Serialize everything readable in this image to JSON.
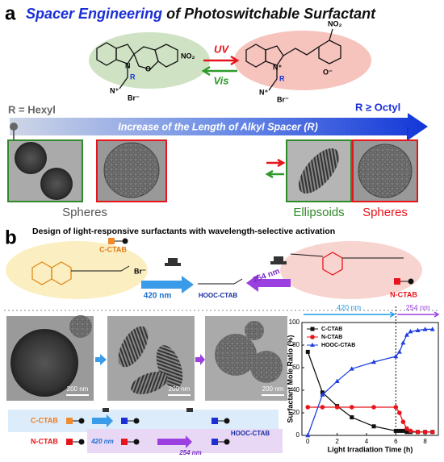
{
  "panel_a": {
    "label": "a",
    "title_highlight": "Spacer Engineering",
    "title_rest": "of Photoswitchable Surfactant",
    "closed_form": {
      "nitro": "NO₂",
      "nitrogen": "N",
      "oxygen": "O",
      "r_group": "R",
      "ammonium": "N⁺",
      "counterion": "Br⁻"
    },
    "open_form": {
      "nitro": "NO₂",
      "nitrogen": "N⁺",
      "oxygen": "O⁻",
      "r_group": "R",
      "ammonium": "N⁺",
      "counterion": "Br⁻"
    },
    "uv": "UV",
    "vis": "Vis",
    "short_spacer": "R = Hexyl",
    "long_spacer": "R ≥ Octyl",
    "arrow_text": "Increase of the Length of Alkyl Spacer (R)",
    "short_morphology": "Spheres",
    "long_morphology_1": "Ellipsoids",
    "long_morphology_2": "Spheres"
  },
  "panel_b": {
    "label": "b",
    "title": "Design of light-responsive surfactants with wavelength-selective activation",
    "c_ctab": "C-CTAB",
    "n_ctab": "N-CTAB",
    "hooc_ctab": "HOOC-CTAB",
    "wavelength_1": "420 nm",
    "wavelength_2": "254 nm",
    "counterion": "Br⁻",
    "scale_bars": [
      "200 nm",
      "200 nm",
      "200 nm"
    ],
    "scheme": {
      "c_ctab": "C-CTAB",
      "n_ctab": "N-CTAB",
      "hooc_ctab": "HOOC-CTAB",
      "wavelength_1": "420 nm",
      "wavelength_2": "254 nm"
    }
  },
  "chart_data": {
    "type": "line",
    "x_label": "Light Irradiation Time (h)",
    "y_label": "Surfactant Mole Ratio (%)",
    "x": [
      0,
      1,
      2,
      3,
      4.5,
      6,
      6.25,
      6.5,
      6.75,
      7,
      7.5,
      8,
      8.5
    ],
    "series": [
      {
        "name": "C-CTAB",
        "color": "#111111",
        "marker": "square",
        "values": [
          74,
          38,
          26,
          16,
          8,
          4,
          4,
          4,
          3,
          3,
          3,
          3,
          3
        ]
      },
      {
        "name": "N-CTAB",
        "color": "#e8141b",
        "marker": "circle",
        "values": [
          25,
          25,
          25,
          25,
          25,
          25,
          20,
          12,
          6,
          4,
          3,
          3,
          3
        ]
      },
      {
        "name": "HOOC-CTAB",
        "color": "#1f3fe0",
        "marker": "triangle",
        "values": [
          0,
          36,
          48,
          59,
          65,
          70,
          74,
          82,
          89,
          92,
          93,
          94,
          94
        ]
      }
    ],
    "xlim": [
      -0.4,
      8.9
    ],
    "ylim": [
      0,
      100
    ],
    "xticks": [
      0,
      2,
      4,
      6,
      8
    ],
    "yticks": [
      0,
      20,
      40,
      60,
      80,
      100
    ],
    "vline": 6,
    "annotations": [
      "420 nm",
      "254 nm"
    ],
    "legend": "upper left",
    "grid": false
  }
}
